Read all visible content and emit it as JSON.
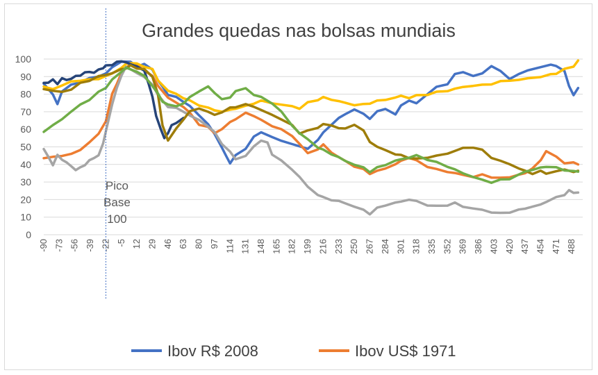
{
  "chart_data": {
    "type": "line",
    "title": "Grandes quedas nas bolsas mundiais",
    "xlabel": "",
    "ylabel": "",
    "ylim": [
      0,
      100
    ],
    "xlim": [
      -90,
      500
    ],
    "yticks": [
      0,
      10,
      20,
      30,
      40,
      50,
      60,
      70,
      80,
      90,
      100
    ],
    "xticks": [
      -90,
      -73,
      -56,
      -39,
      -22,
      -5,
      12,
      29,
      46,
      63,
      80,
      97,
      114,
      131,
      148,
      165,
      182,
      199,
      216,
      233,
      250,
      267,
      284,
      301,
      318,
      335,
      352,
      369,
      386,
      403,
      420,
      437,
      454,
      471,
      488
    ],
    "grid": "horizontal",
    "legend": "bottom",
    "annotation": {
      "x": -22,
      "lines": [
        "Pico",
        "Base",
        "100"
      ]
    },
    "series": [
      {
        "name": "Ibov R$ 2008",
        "color": "#4472c4",
        "x": [
          -90,
          -80,
          -75,
          -70,
          -60,
          -50,
          -40,
          -30,
          -22,
          -15,
          -5,
          5,
          12,
          20,
          29,
          35,
          40,
          46,
          55,
          63,
          70,
          80,
          90,
          97,
          105,
          110,
          114,
          120,
          131,
          140,
          148,
          160,
          170,
          182,
          190,
          199,
          210,
          216,
          225,
          233,
          240,
          250,
          260,
          267,
          275,
          284,
          295,
          301,
          310,
          318,
          330,
          340,
          352,
          360,
          369,
          380,
          390,
          400,
          410,
          420,
          430,
          440,
          454,
          465,
          471,
          480,
          485,
          490,
          495
        ],
        "values": [
          86,
          80,
          74,
          82,
          85,
          87,
          89,
          90,
          92,
          95,
          99,
          98,
          96,
          97,
          94,
          88,
          84,
          80,
          78,
          76,
          73,
          68,
          63,
          57,
          50,
          44,
          41,
          45,
          49,
          56,
          58,
          56,
          53,
          52,
          50,
          49,
          54,
          58,
          63,
          66,
          69,
          71,
          69,
          66,
          70,
          72,
          68,
          74,
          76,
          75,
          80,
          84,
          86,
          91,
          93,
          90,
          92,
          96,
          93,
          89,
          91,
          94,
          95,
          97,
          96,
          93,
          85,
          79,
          84
        ]
      },
      {
        "name": "Ibov US$ 1971",
        "color": "#ed7d31",
        "x": [
          -90,
          -80,
          -70,
          -60,
          -50,
          -40,
          -30,
          -22,
          -15,
          -10,
          -5,
          0,
          5,
          12,
          20,
          29,
          35,
          46,
          55,
          63,
          70,
          80,
          90,
          97,
          105,
          114,
          120,
          131,
          140,
          148,
          160,
          170,
          182,
          190,
          199,
          210,
          216,
          225,
          233,
          240,
          250,
          260,
          267,
          275,
          284,
          295,
          301,
          310,
          318,
          330,
          340,
          352,
          360,
          369,
          380,
          390,
          400,
          410,
          420,
          430,
          437,
          445,
          454,
          460,
          471,
          480,
          490,
          495
        ],
        "values": [
          44,
          44,
          45,
          46,
          48,
          53,
          57,
          65,
          80,
          86,
          92,
          95,
          97,
          96,
          94,
          90,
          85,
          78,
          75,
          73,
          69,
          63,
          61,
          58,
          60,
          64,
          66,
          69,
          68,
          65,
          62,
          60,
          56,
          52,
          46,
          49,
          51,
          47,
          44,
          42,
          39,
          37,
          35,
          36,
          38,
          40,
          42,
          44,
          42,
          39,
          37,
          36,
          35,
          34,
          33,
          34,
          33,
          32,
          33,
          34,
          35,
          38,
          42,
          48,
          44,
          41,
          41,
          40
        ]
      },
      {
        "name": "",
        "color": "#a5a5a5",
        "x": [
          -90,
          -85,
          -80,
          -75,
          -70,
          -65,
          -60,
          -55,
          -50,
          -45,
          -40,
          -35,
          -30,
          -25,
          -22,
          -15,
          -10,
          -5,
          0,
          5,
          12,
          20,
          29,
          35,
          40,
          46,
          55,
          63,
          70,
          80,
          90,
          97,
          105,
          114,
          120,
          131,
          140,
          148,
          155,
          160,
          170,
          182,
          190,
          199,
          210,
          216,
          225,
          233,
          240,
          250,
          260,
          267,
          275,
          284,
          295,
          301,
          310,
          318,
          330,
          340,
          352,
          360,
          369,
          380,
          390,
          400,
          410,
          420,
          430,
          437,
          445,
          454,
          460,
          471,
          480,
          485,
          490,
          495
        ],
        "values": [
          49,
          44,
          40,
          45,
          43,
          41,
          39,
          37,
          38,
          40,
          42,
          44,
          45,
          52,
          59,
          74,
          84,
          90,
          96,
          94,
          92,
          90,
          85,
          80,
          76,
          73,
          72,
          70,
          68,
          65,
          62,
          58,
          52,
          47,
          43,
          45,
          50,
          54,
          52,
          46,
          42,
          37,
          33,
          27,
          23,
          21,
          20,
          19,
          18,
          16,
          14,
          12,
          15,
          17,
          18,
          19,
          20,
          19,
          17,
          16,
          17,
          18,
          16,
          15,
          14,
          13,
          12,
          13,
          14,
          15,
          16,
          17,
          19,
          21,
          23,
          25,
          24,
          24
        ]
      },
      {
        "name": "",
        "color": "#ffc000",
        "x": [
          -90,
          -80,
          -70,
          -60,
          -50,
          -40,
          -30,
          -22,
          -15,
          -5,
          0,
          5,
          12,
          20,
          29,
          35,
          46,
          55,
          63,
          70,
          80,
          90,
          97,
          105,
          114,
          120,
          131,
          140,
          148,
          160,
          170,
          182,
          190,
          199,
          210,
          216,
          225,
          233,
          240,
          250,
          260,
          267,
          275,
          284,
          295,
          301,
          310,
          318,
          330,
          340,
          352,
          360,
          369,
          380,
          390,
          400,
          410,
          420,
          430,
          440,
          454,
          465,
          471,
          480,
          490,
          495
        ],
        "values": [
          84,
          83,
          85,
          87,
          88,
          88,
          89,
          90,
          92,
          95,
          97,
          98,
          97,
          96,
          94,
          88,
          82,
          80,
          78,
          76,
          74,
          72,
          71,
          70,
          71,
          72,
          73,
          75,
          76,
          75,
          74,
          73,
          72,
          75,
          77,
          78,
          77,
          76,
          75,
          74,
          74,
          75,
          76,
          77,
          78,
          79,
          78,
          79,
          80,
          81,
          82,
          83,
          84,
          85,
          85,
          86,
          87,
          88,
          88,
          89,
          90,
          91,
          92,
          94,
          96,
          99
        ]
      },
      {
        "name": "",
        "color": "#264478",
        "x": [
          -90,
          -85,
          -80,
          -75,
          -70,
          -65,
          -60,
          -55,
          -50,
          -45,
          -40,
          -35,
          -30,
          -25,
          -22,
          -15,
          -10,
          -5,
          0,
          5,
          12,
          20,
          25,
          29,
          33,
          38,
          42,
          46,
          50,
          55,
          63
        ],
        "values": [
          86,
          87,
          88,
          86,
          89,
          88,
          89,
          90,
          91,
          92,
          93,
          92,
          94,
          95,
          96,
          97,
          98,
          99,
          98,
          97,
          96,
          93,
          86,
          78,
          68,
          60,
          55,
          58,
          62,
          64,
          66
        ]
      },
      {
        "name": "",
        "color": "#9e7d0a",
        "x": [
          -90,
          -80,
          -70,
          -60,
          -50,
          -40,
          -30,
          -22,
          -15,
          -5,
          0,
          5,
          12,
          20,
          29,
          35,
          40,
          46,
          55,
          63,
          70,
          80,
          90,
          97,
          105,
          114,
          120,
          131,
          140,
          148,
          160,
          170,
          182,
          190,
          199,
          210,
          216,
          225,
          233,
          240,
          250,
          260,
          267,
          275,
          284,
          295,
          301,
          310,
          318,
          330,
          340,
          352,
          360,
          369,
          380,
          390,
          400,
          410,
          420,
          430,
          437,
          445,
          454,
          460,
          471,
          480,
          490,
          495
        ],
        "values": [
          83,
          82,
          81,
          83,
          86,
          88,
          90,
          91,
          92,
          94,
          95,
          96,
          95,
          94,
          90,
          80,
          62,
          54,
          60,
          66,
          70,
          72,
          70,
          68,
          70,
          72,
          73,
          74,
          73,
          71,
          68,
          66,
          62,
          58,
          59,
          61,
          63,
          62,
          61,
          60,
          63,
          59,
          53,
          50,
          48,
          46,
          45,
          44,
          43,
          44,
          45,
          46,
          48,
          49,
          50,
          48,
          44,
          42,
          40,
          38,
          36,
          35,
          36,
          35,
          36,
          37,
          36,
          36
        ]
      },
      {
        "name": "",
        "color": "#70ad47",
        "x": [
          -90,
          -80,
          -70,
          -60,
          -50,
          -40,
          -30,
          -22,
          -15,
          -5,
          0,
          5,
          12,
          20,
          29,
          35,
          40,
          46,
          55,
          63,
          70,
          80,
          90,
          97,
          105,
          114,
          120,
          131,
          140,
          148,
          160,
          170,
          182,
          190,
          199,
          210,
          216,
          225,
          233,
          240,
          250,
          260,
          267,
          275,
          284,
          295,
          301,
          310,
          318,
          330,
          340,
          352,
          360,
          369,
          380,
          390,
          400,
          410,
          420,
          430,
          437,
          445,
          454,
          460,
          471,
          480,
          490,
          495
        ],
        "values": [
          59,
          62,
          66,
          70,
          74,
          77,
          81,
          84,
          88,
          93,
          95,
          94,
          93,
          90,
          85,
          80,
          76,
          74,
          73,
          75,
          78,
          82,
          84,
          81,
          77,
          78,
          82,
          83,
          80,
          78,
          75,
          70,
          62,
          58,
          54,
          50,
          48,
          46,
          44,
          42,
          40,
          38,
          36,
          38,
          40,
          42,
          43,
          44,
          45,
          43,
          41,
          39,
          37,
          35,
          33,
          31,
          30,
          31,
          32,
          34,
          36,
          37,
          38,
          39,
          38,
          37,
          36,
          36
        ]
      }
    ]
  }
}
